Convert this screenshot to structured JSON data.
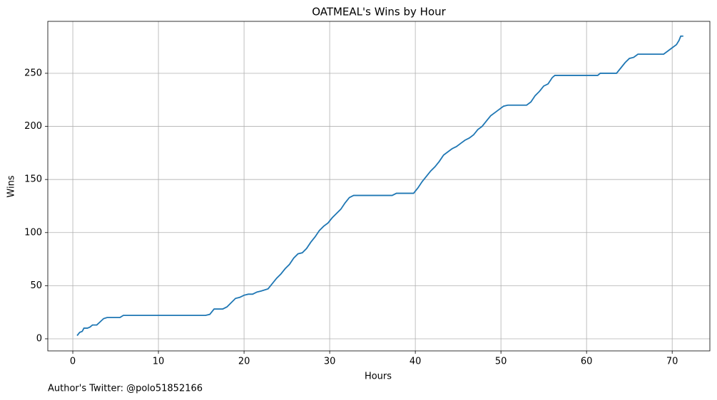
{
  "chart_data": {
    "type": "line",
    "title": "OATMEAL's Wins by Hour",
    "x_label": "Hours",
    "y_label": "Wins",
    "footnote": "Author's Twitter: @polo51852166",
    "xlim": [
      -2.92,
      74.4
    ],
    "ylim": [
      -11.4,
      298.9
    ],
    "xticks": [
      0,
      10,
      20,
      30,
      40,
      50,
      60,
      70
    ],
    "yticks": [
      0,
      50,
      100,
      150,
      200,
      250
    ],
    "grid": true,
    "series": [
      {
        "color": "#1f77b4",
        "x": [
          0.5,
          0.8,
          1.1,
          1.3,
          1.7,
          2.0,
          2.3,
          2.8,
          3.2,
          3.6,
          4.0,
          5.5,
          5.9,
          15.5,
          16.0,
          16.5,
          17.5,
          18.0,
          18.5,
          19.0,
          19.5,
          20.0,
          20.5,
          21.0,
          21.5,
          22.0,
          22.8,
          23.3,
          23.8,
          24.3,
          24.8,
          25.3,
          25.8,
          26.3,
          26.8,
          27.3,
          27.8,
          28.3,
          28.8,
          29.3,
          29.8,
          30.3,
          30.8,
          31.3,
          31.8,
          32.3,
          32.8,
          37.3,
          37.8,
          39.8,
          40.3,
          40.8,
          41.3,
          41.8,
          42.3,
          42.8,
          43.3,
          43.8,
          44.3,
          44.8,
          45.3,
          45.8,
          46.3,
          46.8,
          47.3,
          47.8,
          48.3,
          48.8,
          49.3,
          49.8,
          50.3,
          50.8,
          53.0,
          53.5,
          54.0,
          54.5,
          55.0,
          55.5,
          56.0,
          56.3,
          61.3,
          61.6,
          63.5,
          64.0,
          64.5,
          65.0,
          65.5,
          66.0,
          66.5,
          69.0,
          69.5,
          70.0,
          70.5,
          70.8,
          71.0,
          71.3
        ],
        "values": [
          3,
          6,
          7,
          10,
          10,
          11,
          13,
          13,
          16,
          19,
          20,
          20,
          22,
          22,
          23,
          28,
          28,
          30,
          34,
          38,
          39,
          41,
          42,
          42,
          44,
          45,
          47,
          52,
          57,
          61,
          66,
          70,
          76,
          80,
          81,
          85,
          91,
          96,
          102,
          106,
          109,
          114,
          118,
          122,
          128,
          133,
          135,
          135,
          137,
          137,
          142,
          148,
          153,
          158,
          162,
          167,
          173,
          176,
          179,
          181,
          184,
          187,
          189,
          192,
          197,
          200,
          205,
          210,
          213,
          216,
          219,
          220,
          220,
          223,
          229,
          233,
          238,
          240,
          246,
          248,
          248,
          250,
          250,
          255,
          260,
          264,
          265,
          268,
          268,
          268,
          271,
          274,
          277,
          281,
          285,
          285
        ]
      }
    ]
  }
}
